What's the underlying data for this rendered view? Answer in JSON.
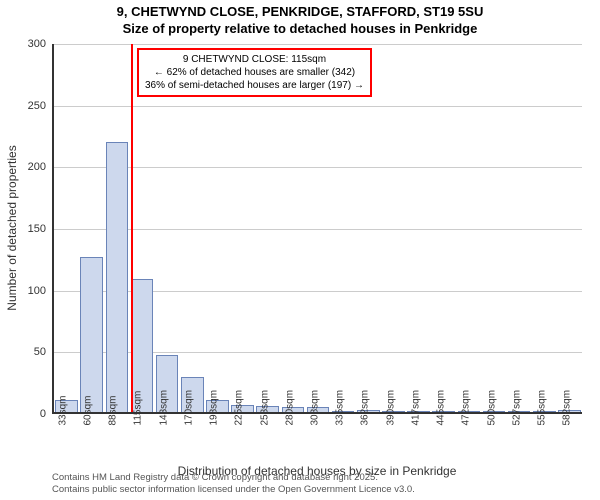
{
  "title": {
    "line1": "9, CHETWYND CLOSE, PENKRIDGE, STAFFORD, ST19 5SU",
    "line2": "Size of property relative to detached houses in Penkridge",
    "fontsize": 13,
    "color": "#000000"
  },
  "chart": {
    "type": "histogram",
    "background_color": "#ffffff",
    "grid_color": "#cccccc",
    "axis_color": "#333333",
    "bar_fill": "#cdd8ed",
    "bar_stroke": "#6a84b8",
    "marker_color": "#ff0000",
    "ylim": [
      0,
      300
    ],
    "ytick_step": 50,
    "yticks": [
      0,
      50,
      100,
      150,
      200,
      250,
      300
    ],
    "yaxis_title": "Number of detached properties",
    "xaxis_title": "Distribution of detached houses by size in Penkridge",
    "xtick_labels": [
      "33sqm",
      "60sqm",
      "88sqm",
      "115sqm",
      "143sqm",
      "170sqm",
      "198sqm",
      "225sqm",
      "253sqm",
      "280sqm",
      "308sqm",
      "335sqm",
      "362sqm",
      "390sqm",
      "417sqm",
      "445sqm",
      "472sqm",
      "500sqm",
      "527sqm",
      "555sqm",
      "582sqm"
    ],
    "values": [
      10,
      126,
      219,
      108,
      46,
      28,
      10,
      6,
      5,
      4,
      4,
      0,
      2,
      0,
      0,
      0,
      0,
      0,
      0,
      0,
      2
    ],
    "marker_index": 3,
    "label_fontsize": 11,
    "xtick_fontsize": 10,
    "axis_title_fontsize": 12
  },
  "annotation": {
    "line1": "9 CHETWYND CLOSE: 115sqm",
    "line2": "← 62% of detached houses are smaller (342)",
    "line3": "36% of semi-detached houses are larger (197) →",
    "border_color": "#ff0000",
    "background_color": "#ffffff",
    "fontsize": 10
  },
  "footer": {
    "line1": "Contains HM Land Registry data © Crown copyright and database right 2025.",
    "line2": "Contains public sector information licensed under the Open Government Licence v3.0.",
    "fontsize": 9.5,
    "color": "#555555"
  }
}
